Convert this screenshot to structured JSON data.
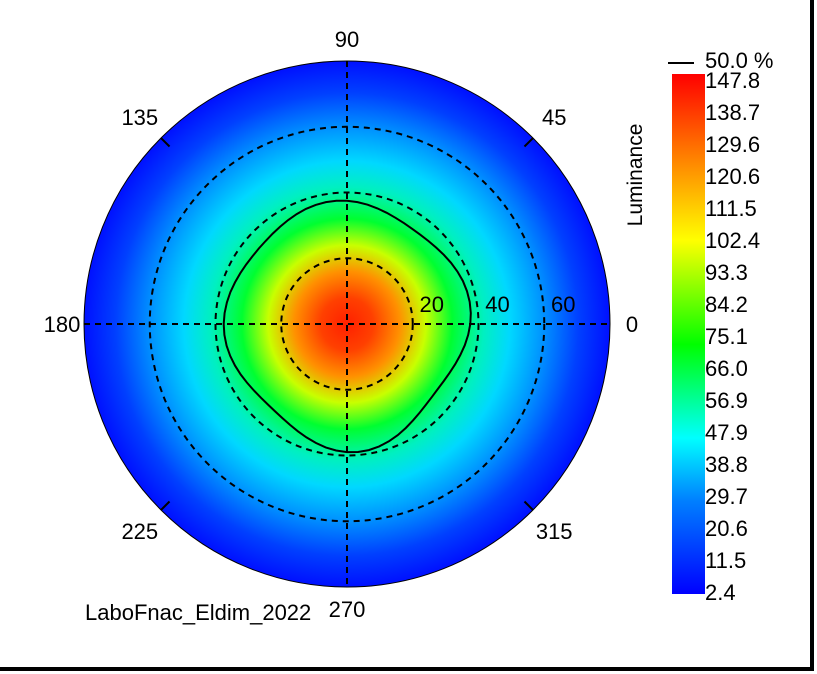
{
  "chart_data": {
    "type": "heatmap",
    "subtype": "polar-conoscope",
    "colorbar_label": "Luminance",
    "colorbar_ticks": [
      "147.8",
      "138.7",
      "129.6",
      "120.6",
      "111.5",
      "102.4",
      "93.3",
      "84.2",
      "75.1",
      "66.0",
      "56.9",
      "47.9",
      "38.8",
      "29.7",
      "20.6",
      "11.5",
      "2.4"
    ],
    "value_min": 2.4,
    "value_max": 147.8,
    "contour_legend": "50.0 %",
    "contour_level_percent": 50.0,
    "angle_labels": [
      {
        "deg": 0,
        "text": "0"
      },
      {
        "deg": 45,
        "text": "45"
      },
      {
        "deg": 90,
        "text": "90"
      },
      {
        "deg": 135,
        "text": "135"
      },
      {
        "deg": 180,
        "text": "180"
      },
      {
        "deg": 225,
        "text": "225"
      },
      {
        "deg": 270,
        "text": "270"
      },
      {
        "deg": 315,
        "text": "315"
      }
    ],
    "radial_labels": [
      {
        "theta": 20,
        "text": "20"
      },
      {
        "theta": 40,
        "text": "40"
      },
      {
        "theta": 60,
        "text": "60"
      }
    ],
    "theta_max": 80,
    "peak_value": 147.8,
    "falloff_theta_half": 36,
    "grid": true,
    "colormap": [
      "#0000ff",
      "#00a0ff",
      "#00ffff",
      "#00ff00",
      "#ffff00",
      "#ff8000",
      "#ff0000"
    ]
  },
  "footer": {
    "source_text": "LaboFnac_Eldim_2022"
  }
}
